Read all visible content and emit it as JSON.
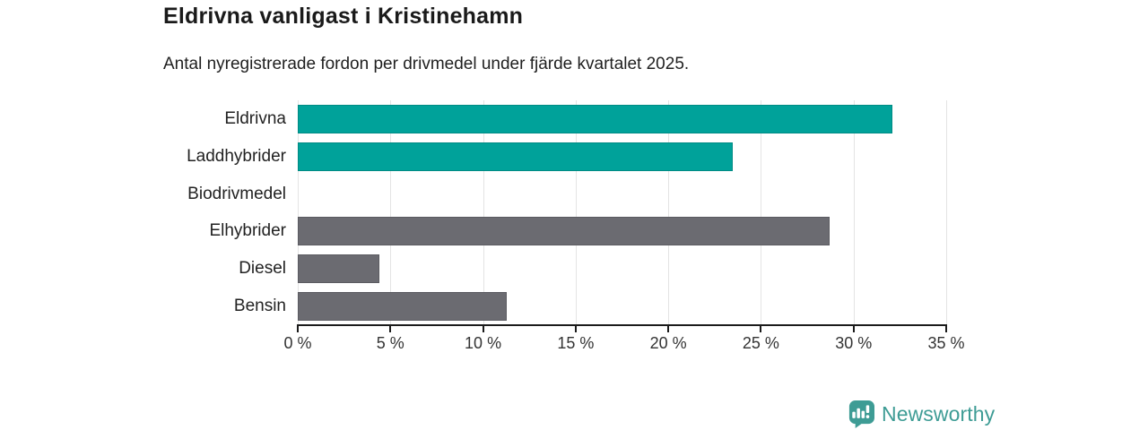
{
  "chart": {
    "title": "Eldrivna vanligast i Kristinehamn",
    "subtitle": "Antal nyregistrerade fordon per drivmedel under fjärde kvartalet 2025."
  },
  "chart_data": {
    "type": "bar",
    "orientation": "horizontal",
    "title": "Eldrivna vanligast i Kristinehamn",
    "subtitle": "Antal nyregistrerade fordon per drivmedel under fjärde kvartalet 2025.",
    "categories": [
      "Eldrivna",
      "Laddhybrider",
      "Biodrivmedel",
      "Elhybrider",
      "Diesel",
      "Bensin"
    ],
    "values": [
      32.1,
      23.5,
      0,
      28.7,
      4.4,
      11.3
    ],
    "unit": "%",
    "xlim": [
      0,
      35
    ],
    "x_tick_values": [
      0,
      5,
      10,
      15,
      20,
      25,
      30,
      35
    ],
    "x_tick_labels": [
      "0 %",
      "5 %",
      "10 %",
      "15 %",
      "20 %",
      "25 %",
      "30 %",
      "35 %"
    ],
    "grid": true,
    "bar_colors": [
      "#00A29A",
      "#00A29A",
      "#6B6B71",
      "#6B6B71",
      "#6B6B71",
      "#6B6B71"
    ],
    "highlight_color": "#00A29A",
    "default_color": "#6B6B71",
    "axis_color": "#1B1B1B",
    "gridline_color": "#E4E4E4"
  },
  "footer": {
    "brand": "Newsworthy",
    "brand_color": "#3E9C95",
    "logo_icon": "bar-chart-badge"
  }
}
